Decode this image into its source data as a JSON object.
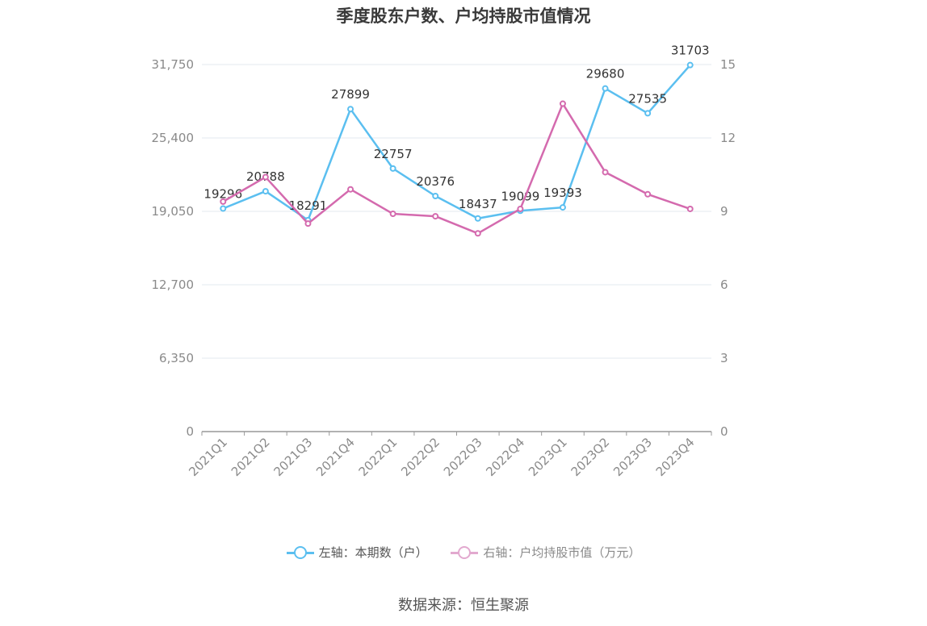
{
  "chart_data": {
    "type": "line",
    "title": "季度股东户数、户均持股市值情况",
    "categories": [
      "2021Q1",
      "2021Q2",
      "2021Q3",
      "2021Q4",
      "2022Q1",
      "2022Q2",
      "2022Q3",
      "2022Q4",
      "2023Q1",
      "2023Q2",
      "2023Q3",
      "2023Q4"
    ],
    "left_axis": {
      "ylim": [
        0,
        31750
      ],
      "ticks": [
        "0",
        "6,350",
        "12,700",
        "19,050",
        "25,400",
        "31,750"
      ]
    },
    "right_axis": {
      "ylim": [
        0,
        15
      ],
      "ticks": [
        "0",
        "3",
        "6",
        "9",
        "12",
        "15"
      ]
    },
    "series": [
      {
        "name": "左轴：本期数（户）",
        "axis": "left",
        "color": "#5bbff0",
        "values": [
          19296,
          20788,
          18291,
          27899,
          22757,
          20376,
          18437,
          19099,
          19393,
          29680,
          27535,
          31703
        ],
        "labels": [
          "19296",
          "20788",
          "18291",
          "27899",
          "22757",
          "20376",
          "18437",
          "19099",
          "19393",
          "29680",
          "27535",
          "31703"
        ]
      },
      {
        "name": "右轴：户均持股市值（万元）",
        "axis": "right",
        "color": "#d46aae",
        "values": [
          9.4,
          10.4,
          8.5,
          9.9,
          8.9,
          8.8,
          8.1,
          9.1,
          13.4,
          10.6,
          9.7,
          9.1
        ]
      }
    ],
    "grid": true,
    "legend_position": "bottom"
  },
  "legend": {
    "left_label": "左轴：本期数（户）",
    "right_label": "右轴：户均持股市值（万元）",
    "left_color": "#5bbff0",
    "right_color": "#e2a9cf"
  },
  "source": "数据来源：恒生聚源"
}
